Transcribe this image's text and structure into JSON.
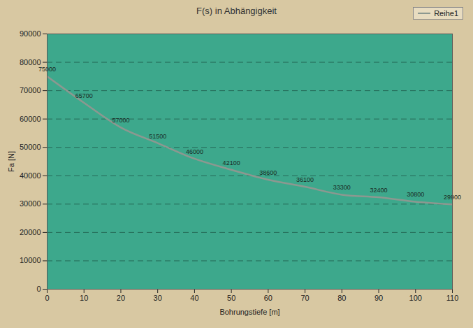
{
  "chart_data": {
    "type": "line",
    "title": "F(s) in Abhängigkeit",
    "x_label": "Bohrungstiefe [m]",
    "y_label": "Fa [N]",
    "x": [
      0,
      10,
      20,
      30,
      40,
      50,
      60,
      70,
      80,
      90,
      100,
      110
    ],
    "series": [
      {
        "name": "Reihe1",
        "color": "#8c9890",
        "values": [
          75000,
          65700,
          57000,
          51500,
          46000,
          42100,
          38600,
          36100,
          33300,
          32400,
          30800,
          29900
        ]
      }
    ],
    "xlim": [
      0,
      110
    ],
    "xticks": [
      0,
      10,
      20,
      30,
      40,
      50,
      60,
      70,
      80,
      90,
      100,
      110
    ],
    "ylim": [
      0,
      90000
    ],
    "yticks": [
      0,
      10000,
      20000,
      30000,
      40000,
      50000,
      60000,
      70000,
      80000,
      90000
    ],
    "grid": true,
    "data_labels": true,
    "legend": "top-right",
    "marker": "none",
    "line_style": "solid"
  }
}
